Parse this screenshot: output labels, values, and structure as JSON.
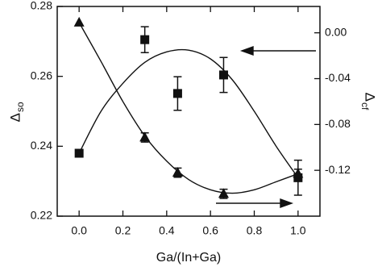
{
  "chart_data": {
    "type": "scatter",
    "x_label": "Ga/(In+Ga)",
    "y_label": "Δ",
    "y_label_sub": "so",
    "y2_label": "Δ",
    "y2_label_sub": "cf",
    "xlim": [
      -0.1,
      1.1
    ],
    "xticks": [
      {
        "value": 0,
        "label": "0.0"
      },
      0.2,
      0.4,
      0.6,
      0.8,
      {
        "value": 1,
        "label": "1.0"
      }
    ],
    "ylim": [
      0.22,
      0.28
    ],
    "yticks": [
      0.22,
      0.24,
      0.26,
      0.28
    ],
    "y2lim": [
      -0.16,
      0.023
    ],
    "y2ticks": [
      -0.12,
      -0.08,
      -0.04,
      {
        "value": 0,
        "label": "0.00"
      }
    ],
    "series": [
      {
        "marker": "square",
        "color": "#111111",
        "x": [
          0,
          0.3,
          0.45,
          0.66,
          1.0
        ],
        "values": [
          0.238,
          0.2705,
          0.2551,
          0.2604,
          0.231
        ],
        "errors": [
          null,
          0.0037,
          0.0048,
          0.005,
          0.005
        ],
        "curve_x": [
          0,
          0.1,
          0.2,
          0.3,
          0.4,
          0.5,
          0.6,
          0.7,
          0.8,
          0.9,
          1.0
        ],
        "curve_values": [
          0.238,
          0.25,
          0.258,
          0.264,
          0.267,
          0.2675,
          0.265,
          0.259,
          0.25,
          0.24,
          0.231
        ]
      },
      {
        "marker": "triangle",
        "color": "#111111",
        "axis": "y2",
        "x": [
          0,
          0.3,
          0.45,
          0.66,
          1.0
        ],
        "values": [
          0.009,
          -0.0913,
          -0.122,
          -0.1405,
          -0.123
        ],
        "errors": [
          null,
          0.004,
          0.004,
          0.004,
          0.004
        ],
        "curve_x": [
          0,
          0.1,
          0.2,
          0.3,
          0.4,
          0.5,
          0.6,
          0.7,
          0.8,
          0.9,
          1.0
        ],
        "curve_values": [
          0.009,
          -0.025,
          -0.06,
          -0.09,
          -0.112,
          -0.128,
          -0.137,
          -0.14,
          -0.137,
          -0.13,
          -0.123
        ]
      }
    ]
  }
}
